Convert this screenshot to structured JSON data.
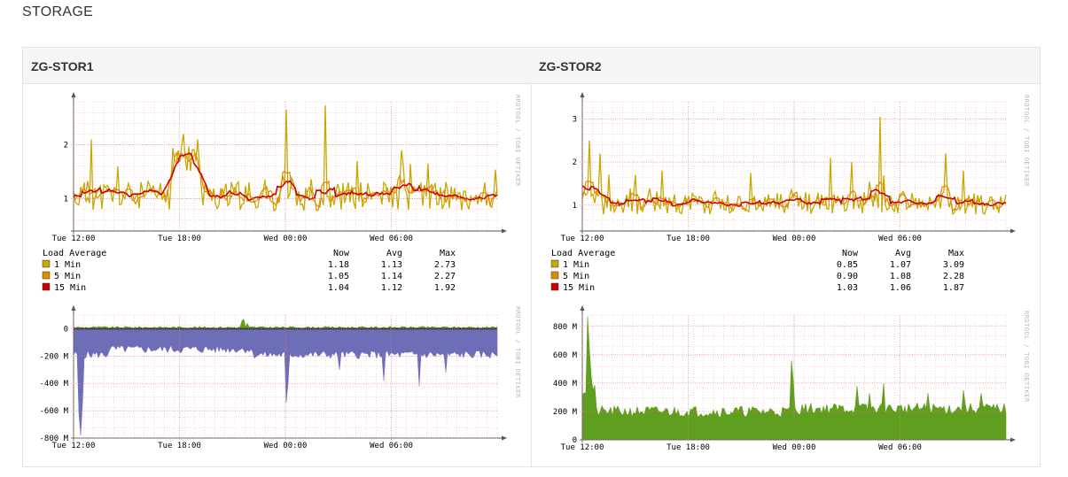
{
  "section": {
    "title": "STORAGE"
  },
  "watermark": "RRDTOOL / TOBI OETIKER",
  "hosts": [
    {
      "name": "ZG-STOR1"
    },
    {
      "name": "ZG-STOR2"
    }
  ],
  "legend_headers": {
    "title": "Load Average",
    "now": "Now",
    "avg": "Avg",
    "max": "Max"
  },
  "colors": {
    "min1": "#c8a800",
    "min5": "#e08a00",
    "min15": "#cc0000",
    "net_out": "#6e6eb8",
    "net_in": "#5f9e1e",
    "grid": "#f2b8b8",
    "axis": "#555555"
  },
  "chart_data": [
    {
      "id": "stor1-load",
      "type": "line",
      "title": "",
      "xlabel": "",
      "ylabel": "",
      "x_ticks": [
        "Tue 12:00",
        "Tue 18:00",
        "Wed 00:00",
        "Wed 06:00"
      ],
      "y_ticks": [
        "1",
        "2"
      ],
      "ylim": [
        0.4,
        2.8
      ],
      "grid": true,
      "series": [
        {
          "name": "1 Min",
          "color": "#c8a800",
          "now": "1.18",
          "avg": "1.13",
          "max": "2.73"
        },
        {
          "name": "5 Min",
          "color": "#e08a00",
          "now": "1.05",
          "avg": "1.14",
          "max": "2.27"
        },
        {
          "name": "15 Min",
          "color": "#cc0000",
          "now": "1.04",
          "avg": "1.12",
          "max": "1.92"
        }
      ]
    },
    {
      "id": "stor2-load",
      "type": "line",
      "title": "",
      "xlabel": "",
      "ylabel": "",
      "x_ticks": [
        "Tue 12:00",
        "Tue 18:00",
        "Wed 00:00",
        "Wed 06:00"
      ],
      "y_ticks": [
        "1",
        "2",
        "3"
      ],
      "ylim": [
        0.4,
        3.4
      ],
      "grid": true,
      "series": [
        {
          "name": "1 Min",
          "color": "#c8a800",
          "now": "0.85",
          "avg": "1.07",
          "max": "3.09"
        },
        {
          "name": "5 Min",
          "color": "#e08a00",
          "now": "0.90",
          "avg": "1.08",
          "max": "2.28"
        },
        {
          "name": "15 Min",
          "color": "#cc0000",
          "now": "1.03",
          "avg": "1.06",
          "max": "1.87"
        }
      ]
    },
    {
      "id": "stor1-net",
      "type": "area",
      "title": "",
      "x_ticks": [
        "Tue 12:00",
        "Tue 18:00",
        "Wed 00:00",
        "Wed 06:00"
      ],
      "y_ticks": [
        "0",
        "-200 M",
        "-400 M",
        "-600 M",
        "-800 M"
      ],
      "ylim": [
        -800,
        100
      ],
      "grid": true
    },
    {
      "id": "stor2-net",
      "type": "area",
      "title": "",
      "x_ticks": [
        "Tue 12:00",
        "Tue 18:00",
        "Wed 00:00",
        "Wed 06:00"
      ],
      "y_ticks": [
        "0",
        "200 M",
        "400 M",
        "600 M",
        "800 M"
      ],
      "ylim": [
        0,
        880
      ],
      "grid": true
    }
  ]
}
